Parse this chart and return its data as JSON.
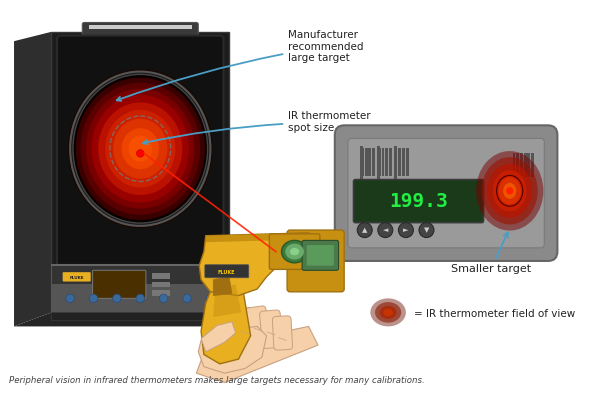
{
  "bg_color": "#ffffff",
  "annotation1": "Manufacturer\nrecommended\nlarge target",
  "annotation2": "IR thermometer\nspot size",
  "annotation3": "Smaller target",
  "annotation4": "= IR thermometer field of view",
  "caption": "Peripheral vision in infrared thermometers makes large targets necessary for many calibrations.",
  "display_text": "199.3",
  "arrow_color": "#4a9ec4",
  "device_body_color": "#1c1c1c",
  "device_side": "#2e2e2e",
  "device_inner": "#111111",
  "handle_color": "#3a3a3a",
  "red_outer": "#3a0000",
  "red_mid1": "#6e0000",
  "red_mid2": "#aa0000",
  "red_mid3": "#cc1100",
  "red_bright": "#dd2200",
  "red_center": "#ee3300",
  "spot_circle_color": "#888888",
  "laser_color": "#ff2200",
  "gun_yellow": "#e8b020",
  "gun_dark": "#c89010",
  "gun_shadow": "#a07010",
  "gun_green": "#6aaa6a",
  "gun_green_dark": "#3a7a3a",
  "gun_black": "#222222",
  "panel_gray": "#8a8a8a",
  "panel_mid": "#9a9a9a",
  "panel_light": "#b0b0b0",
  "vent_dark": "#555555",
  "display_bg": "#1a3a1a",
  "display_green": "#22ee44",
  "btn_color": "#444444",
  "btn_symbol_color": "#cccccc",
  "hand_skin": "#f5d0a9",
  "hand_outline": "#c8a080",
  "bottom_panel_bg": "#333333",
  "bottom_panel_mid": "#555555",
  "calibrator_display_bg": "#4a3000",
  "blue_btn_color": "#3a6a9a",
  "fov_blob1": "#7a1500",
  "fov_blob2": "#aa2200",
  "fov_blob3": "#cc3300",
  "smaller_blob1": "#aa0000",
  "smaller_blob2": "#cc1100",
  "smaller_blob3": "#dd2200",
  "smaller_blob4": "#ee4400",
  "text_color": "#222222",
  "caption_color": "#444444"
}
